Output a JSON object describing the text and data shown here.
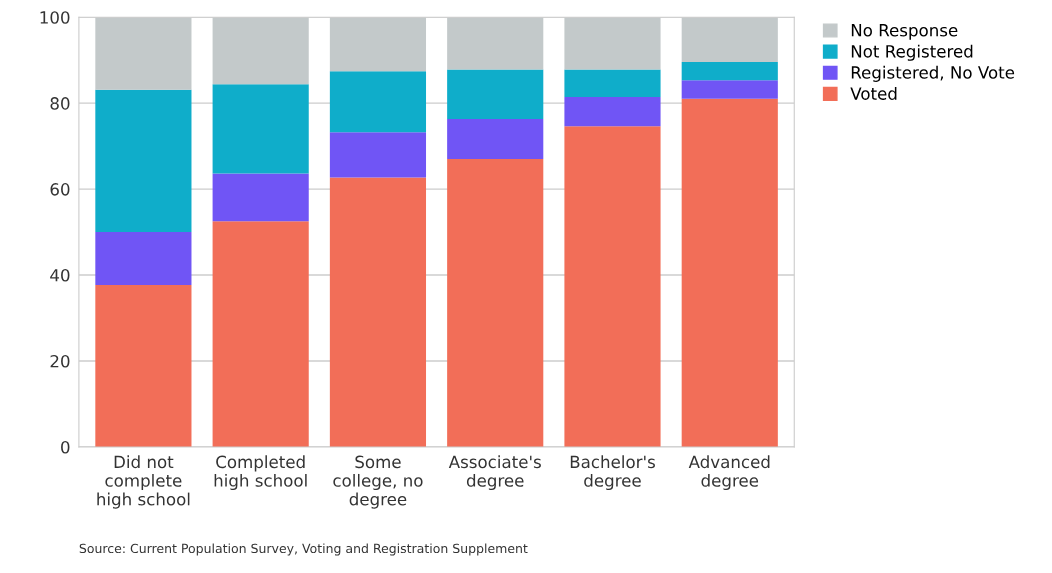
{
  "chart_data": {
    "type": "bar",
    "stacked": true,
    "categories": [
      "Did not\ncomplete\nhigh school",
      "Completed\nhigh school",
      "Some\ncollege, no\ndegree",
      "Associate's\ndegree",
      "Bachelor's\ndegree",
      "Advanced\ndegree"
    ],
    "series": [
      {
        "name": "Voted",
        "color": "#f26e58",
        "values": [
          37.7,
          52.5,
          62.7,
          67.0,
          74.6,
          81.0
        ]
      },
      {
        "name": "Registered, No Vote",
        "color": "#7055f5",
        "values": [
          12.3,
          11.1,
          10.5,
          9.3,
          6.8,
          4.3
        ]
      },
      {
        "name": "Not Registered",
        "color": "#0fadca",
        "values": [
          33.1,
          20.8,
          14.2,
          11.5,
          6.4,
          4.3
        ]
      },
      {
        "name": "No Response",
        "color": "#c3c9ca",
        "values": [
          16.9,
          15.6,
          12.6,
          12.2,
          12.2,
          10.4
        ]
      }
    ],
    "ylim": [
      0,
      100
    ],
    "yticks": [
      0,
      20,
      40,
      60,
      80,
      100
    ],
    "grid": "y",
    "legend": "top right",
    "annotations": [
      "Source: Current Population Survey, Voting and Registration Supplement"
    ]
  }
}
